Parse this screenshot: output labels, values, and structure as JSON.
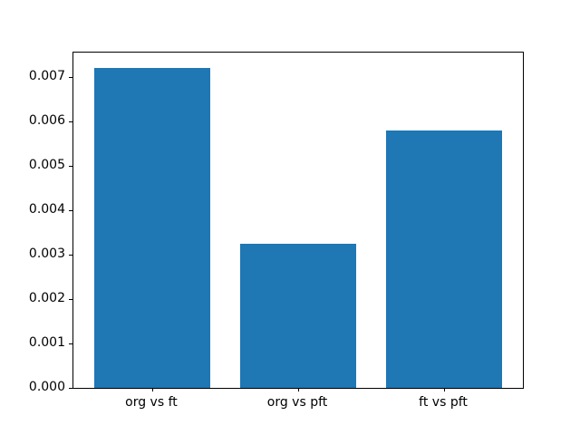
{
  "chart_data": {
    "type": "bar",
    "categories": [
      "org vs ft",
      "org vs pft",
      "ft vs pft"
    ],
    "values": [
      0.0072,
      0.00325,
      0.0058
    ],
    "title": "",
    "xlabel": "",
    "ylabel": "",
    "ylim": [
      0,
      0.00755
    ],
    "xlim": [
      -0.54,
      2.54
    ],
    "bar_width": 0.8,
    "yticks": [
      0.0,
      0.001,
      0.002,
      0.003,
      0.004,
      0.005,
      0.006,
      0.007
    ],
    "ytick_labels": [
      "0.000",
      "0.001",
      "0.002",
      "0.003",
      "0.004",
      "0.005",
      "0.006",
      "0.007"
    ],
    "bar_color": "#1f77b4",
    "spine_color": "#000000",
    "background_color": "#ffffff",
    "grid": false,
    "legend": null
  }
}
